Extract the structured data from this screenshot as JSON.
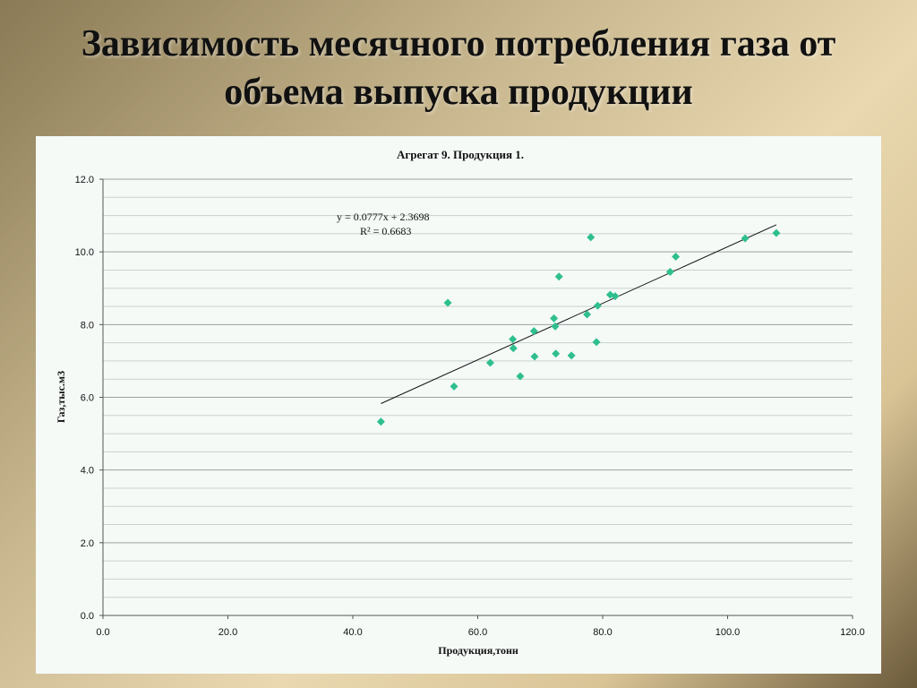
{
  "slide": {
    "title_line1": "Зависимость месячного потребления газа от",
    "title_line2": "объема выпуска продукции"
  },
  "chart_data": {
    "type": "scatter",
    "title": "Агрегат 9. Продукция 1.",
    "xlabel": "Продукция,тонн",
    "ylabel": "Газ,тыс.м3",
    "xlim": [
      0,
      120
    ],
    "ylim": [
      0,
      12
    ],
    "xticks": [
      "0.0",
      "20.0",
      "40.0",
      "60.0",
      "80.0",
      "100.0",
      "120.0"
    ],
    "yticks": [
      "0.0",
      "2.0",
      "4.0",
      "6.0",
      "8.0",
      "10.0",
      "12.0"
    ],
    "grid": true,
    "marker_color": "#2fbf8f",
    "points": [
      {
        "x": 44.5,
        "y": 5.33
      },
      {
        "x": 55.2,
        "y": 8.6
      },
      {
        "x": 56.2,
        "y": 6.3
      },
      {
        "x": 62.0,
        "y": 6.95
      },
      {
        "x": 65.6,
        "y": 7.6
      },
      {
        "x": 65.7,
        "y": 7.35
      },
      {
        "x": 66.8,
        "y": 6.58
      },
      {
        "x": 69.0,
        "y": 7.82
      },
      {
        "x": 69.1,
        "y": 7.12
      },
      {
        "x": 72.2,
        "y": 8.17
      },
      {
        "x": 72.4,
        "y": 7.95
      },
      {
        "x": 72.5,
        "y": 7.2
      },
      {
        "x": 73.0,
        "y": 9.32
      },
      {
        "x": 75.0,
        "y": 7.15
      },
      {
        "x": 77.5,
        "y": 8.28
      },
      {
        "x": 78.1,
        "y": 10.4
      },
      {
        "x": 79.0,
        "y": 7.52
      },
      {
        "x": 79.2,
        "y": 8.52
      },
      {
        "x": 81.2,
        "y": 8.82
      },
      {
        "x": 82.0,
        "y": 8.78
      },
      {
        "x": 90.8,
        "y": 9.45
      },
      {
        "x": 91.7,
        "y": 9.87
      },
      {
        "x": 102.8,
        "y": 10.37
      },
      {
        "x": 107.8,
        "y": 10.52
      }
    ],
    "trendline": {
      "slope": 0.0777,
      "intercept": 2.3698,
      "x_range": [
        44.5,
        107.8
      ],
      "equation": "y = 0.0777x + 2.3698",
      "r2": "R² = 0.6683"
    }
  }
}
